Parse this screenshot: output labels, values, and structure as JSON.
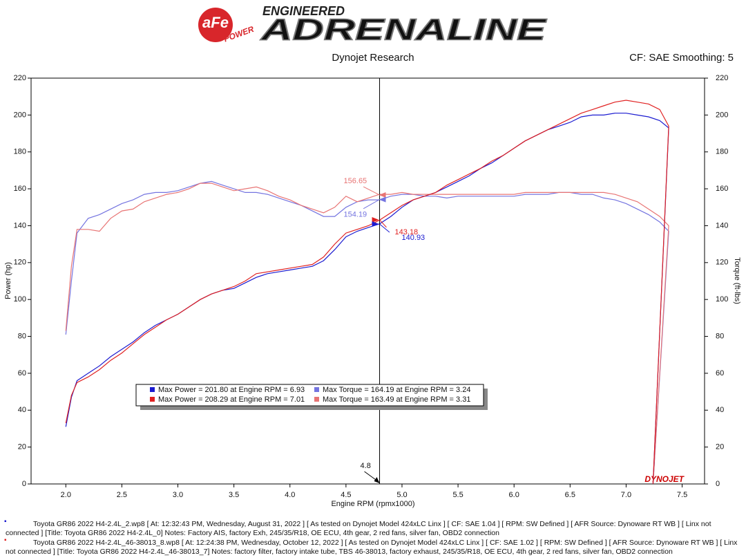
{
  "header": {
    "logo": "aFe",
    "logo_sub": "POWER",
    "tagline": "ENGINEERED",
    "title": "ADRENALINE"
  },
  "chart_data": {
    "type": "line",
    "subtitle": "Dynojet Research",
    "settings_label": "CF: SAE Smoothing: 5",
    "xlabel": "Engine RPM (rpmx1000)",
    "ylabel": "Power (hp)",
    "y2label": "Torque (ft-lbs)",
    "watermark": "DYNOJET",
    "grid": false,
    "xlim": [
      1.69,
      7.7
    ],
    "ylim": [
      0,
      220
    ],
    "y2lim": [
      0,
      220
    ],
    "xticks": [
      {
        "value": 2,
        "label": "2.0"
      },
      2.5,
      {
        "value": 3,
        "label": "3.0"
      },
      3.5,
      {
        "value": 4,
        "label": "4.0"
      },
      4.5,
      {
        "value": 5,
        "label": "5.0"
      },
      5.5,
      {
        "value": 6,
        "label": "6.0"
      },
      6.5,
      {
        "value": 7,
        "label": "7.0"
      },
      7.5
    ],
    "yticks": [
      0,
      20,
      40,
      60,
      80,
      100,
      120,
      140,
      160,
      180,
      200,
      220
    ],
    "y2ticks": [
      0,
      20,
      40,
      60,
      80,
      100,
      120,
      140,
      160,
      180,
      200,
      220
    ],
    "x": [
      2.0,
      2.05,
      2.1,
      2.2,
      2.3,
      2.4,
      2.5,
      2.6,
      2.7,
      2.8,
      2.9,
      3.0,
      3.1,
      3.2,
      3.3,
      3.4,
      3.5,
      3.6,
      3.7,
      3.8,
      3.9,
      4.0,
      4.1,
      4.2,
      4.3,
      4.4,
      4.5,
      4.6,
      4.7,
      4.8,
      4.9,
      5.0,
      5.1,
      5.2,
      5.3,
      5.4,
      5.5,
      5.6,
      5.7,
      5.8,
      5.9,
      6.0,
      6.1,
      6.2,
      6.3,
      6.4,
      6.5,
      6.6,
      6.7,
      6.8,
      6.9,
      7.0,
      7.1,
      7.2,
      7.3,
      7.38,
      7.24
    ],
    "series": [
      {
        "name": "Max Power = 201.80 at Engine RPM = 6.93",
        "color": "#1a1ad0",
        "values": [
          31,
          47,
          56,
          60,
          64,
          69,
          73,
          77,
          82,
          86,
          89,
          92,
          96,
          100,
          103,
          105,
          106,
          109,
          112,
          114,
          115,
          116,
          117,
          118,
          121,
          127,
          134,
          137,
          139,
          141,
          145,
          150,
          154,
          156,
          158,
          161,
          164,
          167,
          171,
          174,
          178,
          182,
          186,
          189,
          192,
          194,
          196,
          199,
          200,
          200,
          201,
          201,
          200,
          199,
          197,
          193,
          0
        ]
      },
      {
        "name": "Max Power = 208.29 at Engine RPM = 7.01",
        "color": "#e02020",
        "values": [
          33,
          48,
          55,
          58,
          62,
          67,
          71,
          76,
          81,
          85,
          89,
          92,
          96,
          100,
          103,
          105,
          107,
          110,
          114,
          115,
          116,
          117,
          118,
          119,
          123,
          130,
          136,
          138,
          140,
          143,
          147,
          151,
          154,
          156,
          158,
          162,
          165,
          168,
          171,
          175,
          178,
          182,
          186,
          189,
          192,
          195,
          198,
          201,
          203,
          205,
          207,
          208,
          207,
          206,
          203,
          194,
          0
        ]
      },
      {
        "name": "Max Torque = 164.19 at Engine RPM = 3.24",
        "color": "#7474e0",
        "axis": "y2",
        "values": [
          81,
          110,
          136,
          144,
          146,
          149,
          152,
          154,
          157,
          158,
          158,
          159,
          161,
          163,
          164,
          162,
          160,
          158,
          158,
          157,
          155,
          153,
          151,
          148,
          145,
          145,
          150,
          153,
          154,
          154,
          156,
          157,
          157,
          156,
          156,
          155,
          156,
          156,
          156,
          156,
          156,
          156,
          157,
          157,
          157,
          158,
          158,
          157,
          157,
          155,
          154,
          152,
          149,
          146,
          142,
          137,
          0
        ]
      },
      {
        "name": "Max Torque = 163.49 at Engine RPM = 3.31",
        "color": "#e87474",
        "axis": "y2",
        "values": [
          83,
          118,
          138,
          138,
          137,
          144,
          148,
          149,
          153,
          155,
          157,
          158,
          160,
          163,
          163,
          161,
          159,
          160,
          161,
          159,
          156,
          154,
          151,
          149,
          147,
          150,
          156,
          153,
          155,
          157,
          157,
          158,
          157,
          157,
          157,
          157,
          157,
          157,
          157,
          157,
          157,
          157,
          158,
          158,
          158,
          158,
          158,
          158,
          158,
          158,
          157,
          155,
          153,
          149,
          145,
          140,
          0
        ]
      }
    ],
    "cursor": {
      "x": 4.8,
      "readouts": [
        {
          "value": 156.65,
          "color": "#e87474"
        },
        {
          "value": 154.19,
          "color": "#7474e0"
        },
        {
          "value": 143.18,
          "color": "#e02020"
        },
        {
          "value": 140.93,
          "color": "#1a1ad0"
        }
      ]
    }
  },
  "runs": [
    {
      "color": "#1a1ad0",
      "text": "Toyota GR86 2022 H4-2.4L_2.wp8 [ At: 12:32:43 PM, Wednesday, August 31, 2022 ] [ As tested on Dynojet Model 424xLC Linx ] [ CF: SAE 1.04 ] [ RPM: SW Defined ] [ AFR Source: Dynoware RT WB ] [ Linx not connected ] [Title: Toyota GR86 2022 H4-2.4L_0]  Notes: Factory AIS, factory Exh, 245/35/R18, OE ECU, 4th gear, 2 red fans, silver fan, OBD2 connection"
    },
    {
      "color": "#e02020",
      "text": "Toyota GR86 2022 H4-2.4L_46-38013_8.wp8 [ At: 12:24:38 PM, Wednesday, October 12, 2022 ] [ As tested on Dynojet Model 424xLC Linx ] [ CF: SAE 1.02 ] [ RPM: SW Defined ] [ AFR Source: Dynoware RT WB ] [ Linx not connected ] [Title: Toyota GR86 2022 H4-2.4L_46-38013_7]  Notes: factory filter, factory intake tube, TBS 46-38013, factory exhaust, 245/35/R18, OE ECU, 4th gear, 2 red fans, silver fan, OBD2 connection"
    }
  ]
}
